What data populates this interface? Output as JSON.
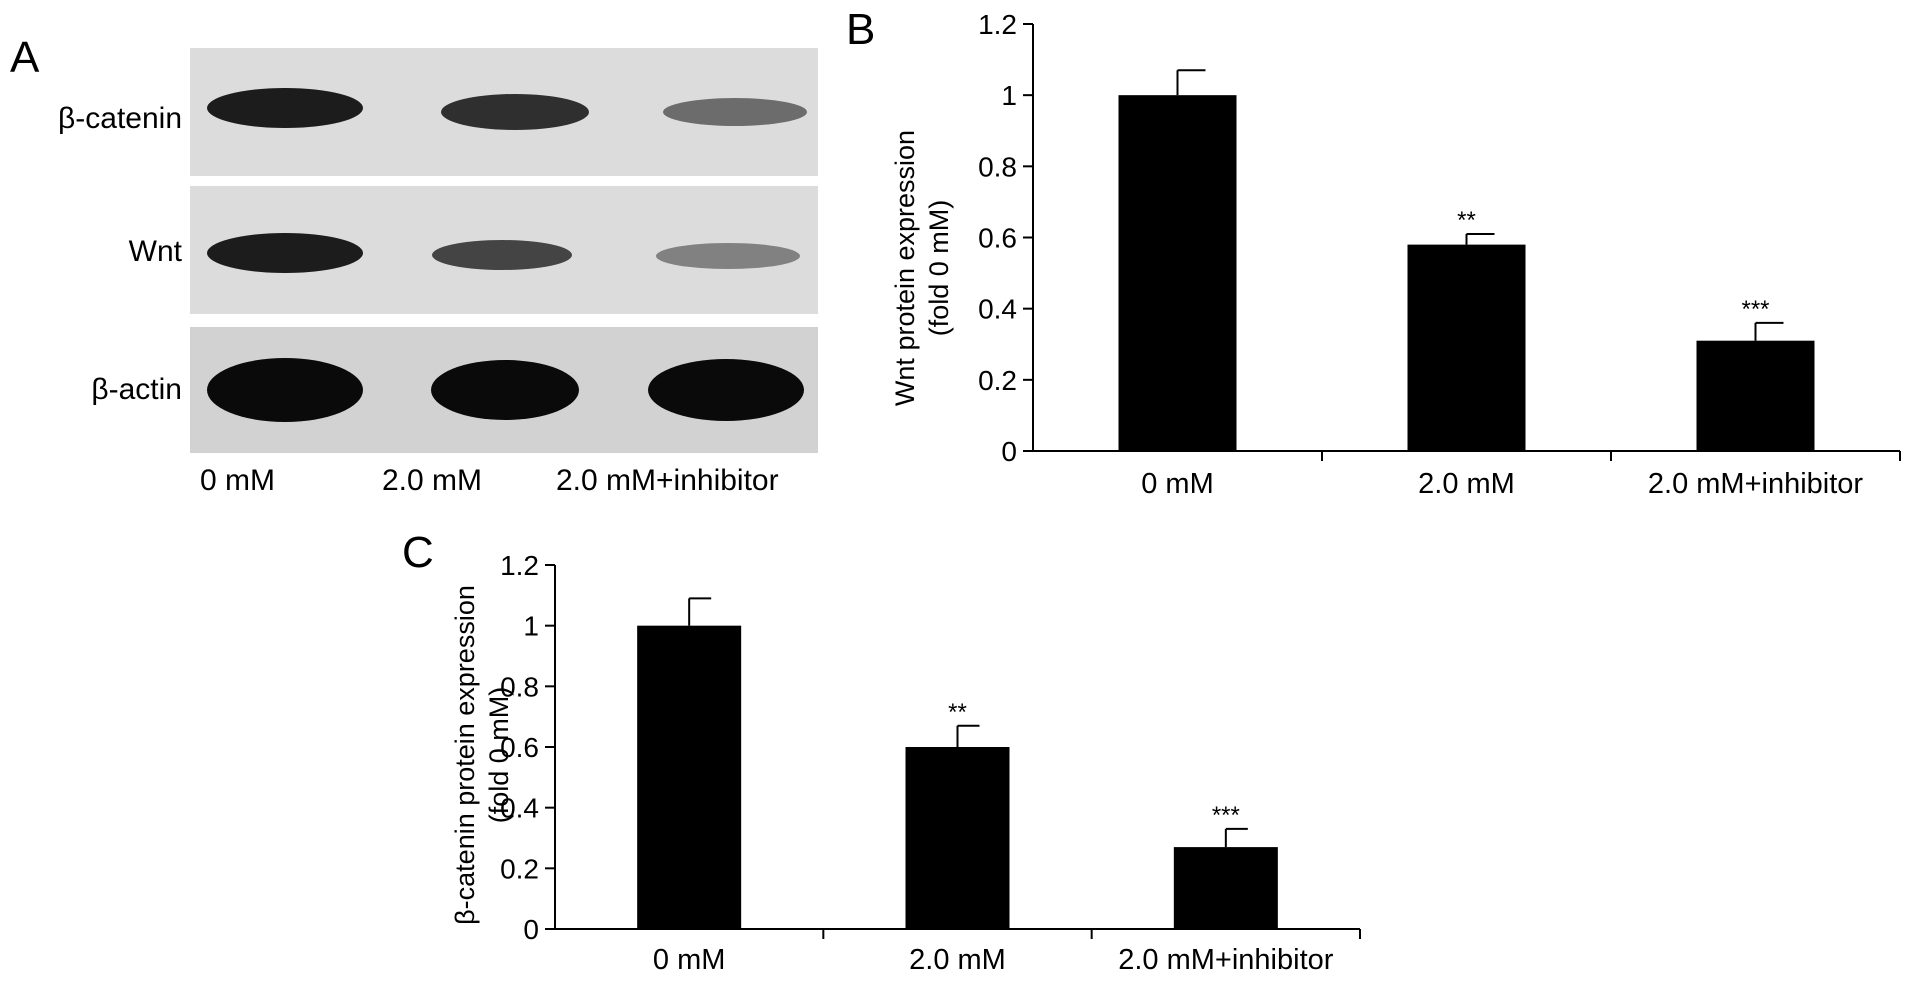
{
  "panels": {
    "a": {
      "letter": "A"
    },
    "b": {
      "letter": "B"
    },
    "c": {
      "letter": "C"
    }
  },
  "blot": {
    "rows": [
      {
        "label": "β-catenin",
        "intensity": [
          0.95,
          0.85,
          0.55
        ]
      },
      {
        "label": "Wnt",
        "intensity": [
          0.95,
          0.75,
          0.45
        ]
      },
      {
        "label": "β-actin",
        "intensity": [
          1.0,
          1.0,
          1.0
        ]
      }
    ],
    "lanes": [
      "0 mM",
      "2.0 mM",
      "2.0 mM+inhibitor"
    ]
  },
  "chart_data": [
    {
      "type": "bar",
      "panel": "B",
      "categories": [
        "0 mM",
        "2.0 mM",
        "2.0 mM+inhibitor"
      ],
      "values": [
        1.0,
        0.58,
        0.31
      ],
      "errors": [
        0.07,
        0.03,
        0.05
      ],
      "significance": [
        "",
        "**",
        "***"
      ],
      "ylabel_line1": "Wnt protein expression",
      "ylabel_line2": "(fold 0 mM)",
      "ylim": [
        0,
        1.2
      ],
      "yticks": [
        "0",
        "0.2",
        "0.4",
        "0.6",
        "0.8",
        "1",
        "1.2"
      ],
      "bar_color": "#000000",
      "grid": false
    },
    {
      "type": "bar",
      "panel": "C",
      "categories": [
        "0 mM",
        "2.0 mM",
        "2.0 mM+inhibitor"
      ],
      "values": [
        1.0,
        0.6,
        0.27
      ],
      "errors": [
        0.09,
        0.07,
        0.06
      ],
      "significance": [
        "",
        "**",
        "***"
      ],
      "ylabel_line1": "β-catenin protein expression",
      "ylabel_line2": "(fold 0 mM)",
      "ylim": [
        0,
        1.2
      ],
      "yticks": [
        "0",
        "0.2",
        "0.4",
        "0.6",
        "0.8",
        "1",
        "1.2"
      ],
      "bar_color": "#000000",
      "grid": false
    }
  ]
}
